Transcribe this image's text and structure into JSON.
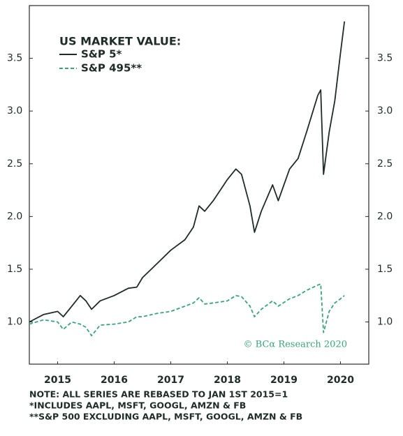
{
  "chart_data": {
    "type": "line",
    "legend_title": "US MARKET VALUE:",
    "legend": "upper left",
    "watermark": "© BCα Research 2020",
    "notes": [
      "NOTE: ALL SERIES ARE REBASED TO JAN 1ST 2015=1",
      "*INCLUDES AAPL, MSFT, GOOGL, AMZN & FB",
      "**S&P 500 EXCLUDING AAPL, MSFT, GOOGL, AMZN & FB"
    ],
    "x": [
      2015.0,
      2015.25,
      2015.5,
      2015.6,
      2015.75,
      2015.9,
      2016.0,
      2016.1,
      2016.25,
      2016.5,
      2016.75,
      2016.9,
      2017.0,
      2017.25,
      2017.5,
      2017.75,
      2017.9,
      2018.0,
      2018.1,
      2018.25,
      2018.5,
      2018.65,
      2018.75,
      2018.9,
      2018.98,
      2019.1,
      2019.3,
      2019.4,
      2019.6,
      2019.75,
      2019.9,
      2020.1,
      2020.15,
      2020.2,
      2020.3,
      2020.4,
      2020.5,
      2020.57
    ],
    "series": [
      {
        "name": "S&P 5*",
        "color": "#1e2b27",
        "dash": false,
        "values": [
          1.0,
          1.07,
          1.1,
          1.05,
          1.15,
          1.25,
          1.2,
          1.12,
          1.2,
          1.25,
          1.32,
          1.33,
          1.42,
          1.55,
          1.68,
          1.78,
          1.9,
          2.1,
          2.05,
          2.15,
          2.35,
          2.45,
          2.4,
          2.1,
          1.85,
          2.05,
          2.3,
          2.15,
          2.45,
          2.55,
          2.8,
          3.15,
          3.2,
          2.4,
          2.8,
          3.1,
          3.55,
          3.85
        ]
      },
      {
        "name": "S&P 495**",
        "color": "#3aa37a",
        "dash": true,
        "values": [
          0.98,
          1.02,
          1.0,
          0.93,
          1.0,
          0.98,
          0.95,
          0.87,
          0.97,
          0.98,
          1.0,
          1.05,
          1.05,
          1.08,
          1.1,
          1.15,
          1.18,
          1.23,
          1.17,
          1.18,
          1.2,
          1.25,
          1.24,
          1.15,
          1.05,
          1.12,
          1.2,
          1.15,
          1.22,
          1.25,
          1.3,
          1.35,
          1.36,
          0.9,
          1.1,
          1.18,
          1.22,
          1.25
        ]
      }
    ],
    "xlim": [
      2015,
      2021
    ],
    "xticks": [
      {
        "value": 2015.5,
        "label": "2015"
      },
      {
        "value": 2016.5,
        "label": "2016"
      },
      {
        "value": 2017.5,
        "label": "2017"
      },
      {
        "value": 2018.5,
        "label": "2018"
      },
      {
        "value": 2019.5,
        "label": "2019"
      },
      {
        "value": 2020.5,
        "label": "2020"
      }
    ],
    "ylim": [
      0.6,
      4.0
    ],
    "yticks": [
      {
        "value": 1,
        "label": "1.0"
      },
      1.5,
      {
        "value": 2,
        "label": "2.0"
      },
      2.5,
      {
        "value": 3,
        "label": "3.0"
      },
      3.5
    ],
    "y2lim": [
      0.6,
      4.0
    ],
    "y2ticks": [
      {
        "value": 1,
        "label": "1.0"
      },
      1.5,
      {
        "value": 2,
        "label": "2.0"
      },
      2.5,
      {
        "value": 3,
        "label": "3.0"
      },
      3.5
    ]
  }
}
